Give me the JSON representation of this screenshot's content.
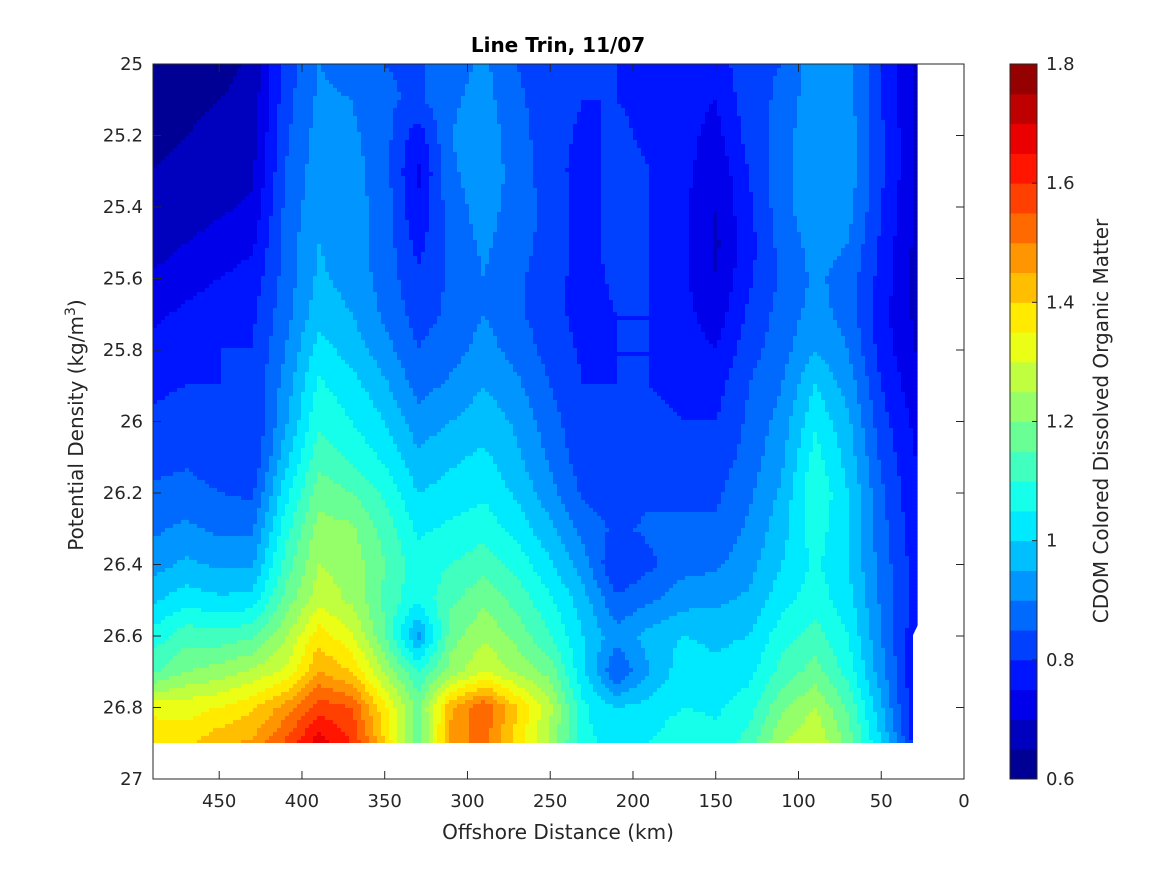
{
  "chart_data": {
    "type": "heatmap",
    "title": "Line Trin, 11/07",
    "xlabel": "Offshore Distance (km)",
    "ylabel_main": "Potential Density (kg/m",
    "ylabel_sup": "3",
    "ylabel_close": ")",
    "colorbar_label": "CDOM Colored Dissolved Organic Matter",
    "x_reversed": true,
    "y_reversed": true,
    "xlim": [
      0,
      490
    ],
    "ylim": [
      25,
      27
    ],
    "xticks": [
      450,
      400,
      350,
      300,
      250,
      200,
      150,
      100,
      50,
      0
    ],
    "xtick_labels": [
      "450",
      "400",
      "350",
      "300",
      "250",
      "200",
      "150",
      "100",
      "50",
      "0"
    ],
    "yticks": [
      25,
      25.2,
      25.4,
      25.6,
      25.8,
      26,
      26.2,
      26.4,
      26.6,
      26.8,
      27
    ],
    "ytick_labels": [
      "25",
      "25.2",
      "25.4",
      "25.6",
      "25.8",
      "26",
      "26.2",
      "26.4",
      "26.6",
      "26.8",
      "27"
    ],
    "colorbar_range": [
      0.6,
      1.8
    ],
    "colorbar_ticks": [
      0.6,
      0.8,
      1,
      1.2,
      1.4,
      1.6,
      1.8
    ],
    "colorbar_tick_labels": [
      "0.6",
      "0.8",
      "1",
      "1.2",
      "1.4",
      "1.6",
      "1.8"
    ],
    "contour_levels": 24,
    "colormap": "jet",
    "data_extent": {
      "x_min": 30,
      "x_max": 490,
      "y_min": 25,
      "y_max": 26.9
    },
    "x": [
      490,
      470,
      450,
      430,
      410,
      390,
      370,
      350,
      330,
      310,
      290,
      270,
      250,
      230,
      210,
      190,
      170,
      150,
      130,
      110,
      90,
      70,
      50,
      30
    ],
    "y": [
      25.0,
      25.1,
      25.2,
      25.3,
      25.4,
      25.5,
      25.6,
      25.7,
      25.8,
      25.9,
      26.0,
      26.1,
      26.2,
      26.3,
      26.4,
      26.5,
      26.6,
      26.7,
      26.8,
      26.9
    ],
    "values": [
      [
        0.62,
        0.63,
        0.63,
        0.66,
        0.82,
        0.9,
        0.88,
        0.85,
        0.84,
        0.88,
        0.91,
        0.85,
        0.82,
        0.8,
        0.8,
        0.79,
        0.78,
        0.77,
        0.84,
        0.85,
        0.93,
        0.92,
        0.8,
        0.7
      ],
      [
        0.63,
        0.64,
        0.65,
        0.67,
        0.83,
        0.91,
        0.9,
        0.86,
        0.84,
        0.89,
        0.92,
        0.86,
        0.82,
        0.8,
        0.8,
        0.79,
        0.77,
        0.75,
        0.83,
        0.86,
        0.94,
        0.92,
        0.8,
        0.7
      ],
      [
        0.64,
        0.65,
        0.66,
        0.68,
        0.84,
        0.92,
        0.91,
        0.87,
        0.77,
        0.9,
        0.93,
        0.87,
        0.82,
        0.79,
        0.81,
        0.79,
        0.77,
        0.73,
        0.82,
        0.87,
        0.95,
        0.93,
        0.81,
        0.7
      ],
      [
        0.65,
        0.66,
        0.67,
        0.69,
        0.85,
        0.93,
        0.92,
        0.87,
        0.74,
        0.89,
        0.93,
        0.88,
        0.82,
        0.78,
        0.82,
        0.8,
        0.77,
        0.71,
        0.8,
        0.88,
        0.95,
        0.93,
        0.81,
        0.7
      ],
      [
        0.65,
        0.67,
        0.69,
        0.71,
        0.86,
        0.94,
        0.92,
        0.88,
        0.75,
        0.88,
        0.92,
        0.88,
        0.83,
        0.78,
        0.82,
        0.8,
        0.76,
        0.7,
        0.79,
        0.88,
        0.94,
        0.92,
        0.8,
        0.7
      ],
      [
        0.67,
        0.7,
        0.72,
        0.74,
        0.87,
        0.95,
        0.92,
        0.88,
        0.78,
        0.87,
        0.91,
        0.87,
        0.83,
        0.78,
        0.82,
        0.8,
        0.76,
        0.69,
        0.78,
        0.87,
        0.92,
        0.9,
        0.79,
        0.69
      ],
      [
        0.71,
        0.73,
        0.75,
        0.77,
        0.87,
        0.96,
        0.93,
        0.88,
        0.81,
        0.86,
        0.9,
        0.86,
        0.82,
        0.78,
        0.81,
        0.8,
        0.76,
        0.7,
        0.79,
        0.86,
        0.91,
        0.88,
        0.78,
        0.69
      ],
      [
        0.74,
        0.76,
        0.78,
        0.79,
        0.88,
        0.98,
        0.95,
        0.89,
        0.83,
        0.86,
        0.9,
        0.86,
        0.82,
        0.78,
        0.8,
        0.8,
        0.77,
        0.72,
        0.81,
        0.87,
        0.92,
        0.88,
        0.77,
        0.69
      ],
      [
        0.76,
        0.78,
        0.8,
        0.8,
        0.9,
        1.02,
        0.98,
        0.92,
        0.85,
        0.88,
        0.92,
        0.88,
        0.83,
        0.79,
        0.8,
        0.8,
        0.78,
        0.75,
        0.83,
        0.88,
        0.95,
        0.9,
        0.78,
        0.7
      ],
      [
        0.79,
        0.8,
        0.8,
        0.81,
        0.92,
        1.06,
        1.02,
        0.96,
        0.88,
        0.91,
        0.95,
        0.91,
        0.85,
        0.8,
        0.8,
        0.8,
        0.79,
        0.78,
        0.85,
        0.9,
        1.0,
        0.93,
        0.8,
        0.72
      ],
      [
        0.81,
        0.82,
        0.8,
        0.8,
        0.94,
        1.09,
        1.05,
        1.0,
        0.92,
        0.95,
        0.98,
        0.94,
        0.87,
        0.81,
        0.8,
        0.81,
        0.8,
        0.8,
        0.86,
        0.92,
        1.04,
        0.96,
        0.82,
        0.74
      ],
      [
        0.83,
        0.84,
        0.82,
        0.8,
        0.98,
        1.13,
        1.09,
        1.04,
        0.96,
        0.99,
        1.01,
        0.96,
        0.89,
        0.82,
        0.81,
        0.82,
        0.82,
        0.82,
        0.87,
        0.94,
        1.07,
        0.98,
        0.84,
        0.75
      ],
      [
        0.86,
        0.87,
        0.85,
        0.84,
        1.03,
        1.18,
        1.15,
        1.09,
        1.0,
        1.02,
        1.04,
        0.99,
        0.92,
        0.84,
        0.82,
        0.84,
        0.84,
        0.84,
        0.89,
        0.96,
        1.1,
        1.0,
        0.86,
        0.76
      ],
      [
        0.89,
        0.91,
        0.89,
        0.89,
        1.08,
        1.22,
        1.21,
        1.13,
        1.04,
        1.06,
        1.08,
        1.03,
        0.96,
        0.88,
        0.84,
        0.86,
        0.86,
        0.86,
        0.91,
        0.98,
        1.08,
        1.0,
        0.87,
        0.77
      ],
      [
        0.93,
        0.96,
        0.94,
        0.94,
        1.12,
        1.25,
        1.23,
        1.15,
        1.07,
        1.1,
        1.13,
        1.08,
        1.01,
        0.92,
        0.8,
        0.84,
        0.88,
        0.89,
        0.93,
        1.0,
        1.06,
        1.0,
        0.88,
        0.78
      ],
      [
        0.99,
        1.03,
        1.01,
        1.02,
        1.17,
        1.28,
        1.24,
        1.14,
        1.06,
        1.14,
        1.19,
        1.13,
        1.06,
        0.97,
        0.86,
        0.89,
        0.93,
        0.94,
        0.96,
        1.03,
        1.08,
        1.02,
        0.89,
        0.78
      ],
      [
        1.07,
        1.13,
        1.12,
        1.14,
        1.24,
        1.38,
        1.31,
        1.15,
        0.93,
        1.18,
        1.24,
        1.18,
        1.1,
        1.0,
        0.92,
        0.97,
        1.0,
        0.99,
        1.0,
        1.08,
        1.12,
        1.05,
        0.9,
        0.77
      ],
      [
        1.14,
        1.2,
        1.22,
        1.26,
        1.31,
        1.45,
        1.4,
        1.24,
        1.1,
        1.22,
        1.3,
        1.24,
        1.18,
        1.01,
        0.85,
        0.95,
        1.03,
        1.01,
        1.03,
        1.12,
        1.17,
        1.08,
        0.92,
        0.76
      ],
      [
        1.33,
        1.33,
        1.35,
        1.39,
        1.47,
        1.58,
        1.55,
        1.36,
        1.18,
        1.44,
        1.54,
        1.4,
        1.26,
        1.06,
        1.0,
        1.02,
        1.05,
        1.04,
        1.08,
        1.19,
        1.25,
        1.14,
        0.96,
        0.76
      ],
      [
        1.4,
        1.38,
        1.44,
        1.46,
        1.56,
        1.68,
        1.6,
        1.4,
        1.15,
        1.47,
        1.52,
        1.38,
        1.24,
        1.06,
        1.04,
        1.05,
        1.09,
        1.07,
        1.12,
        1.25,
        1.3,
        1.18,
        1.0,
        0.78
      ]
    ]
  }
}
